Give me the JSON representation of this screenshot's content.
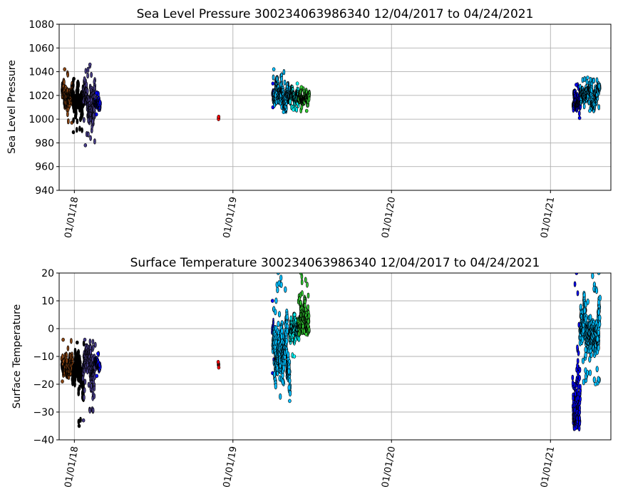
{
  "chart_data": [
    {
      "type": "scatter",
      "title": "Sea Level Pressure 300234063986340  12/04/2017 to 04/24/2021",
      "ylabel": "Sea Level Pressure",
      "xlabel": "",
      "ylim": [
        940,
        1080
      ],
      "yticks": [
        940,
        960,
        980,
        1000,
        1020,
        1040,
        1060,
        1080
      ],
      "xticks": [
        {
          "date": "2018-01-01",
          "label": "01/01/18"
        },
        {
          "date": "2019-01-01",
          "label": "01/01/19"
        },
        {
          "date": "2020-01-01",
          "label": "01/01/20"
        },
        {
          "date": "2021-01-01",
          "label": "01/01/21"
        }
      ],
      "xlim": [
        "2017-11-27",
        "2021-05-20"
      ],
      "grid": true,
      "series": [
        {
          "color": "#8B4513",
          "start": "2017-12-04",
          "end": "2017-12-28",
          "min": 997,
          "max": 1042,
          "center": 1018,
          "width": 5
        },
        {
          "color": "#000000",
          "start": "2017-12-28",
          "end": "2018-01-22",
          "min": 989,
          "max": 1034,
          "center": 1016,
          "width": 5
        },
        {
          "color": "#483D8B",
          "start": "2018-01-22",
          "end": "2018-02-18",
          "min": 978,
          "max": 1046,
          "center": 1020,
          "width": 5
        },
        {
          "color": "#0000FF",
          "start": "2018-02-18",
          "end": "2018-03-01",
          "min": 1004,
          "max": 1022,
          "center": 1012,
          "width": 5
        },
        {
          "color": "#FF0000",
          "start": "2018-11-28",
          "end": "2018-11-30",
          "min": 1000,
          "max": 1002,
          "center": 1001,
          "width": 2
        },
        {
          "color": "#0000FF",
          "start": "2019-04-02",
          "end": "2019-04-04",
          "min": 1010,
          "max": 1030,
          "center": 1020,
          "width": 3
        },
        {
          "color": "#00BFFF",
          "start": "2019-04-04",
          "end": "2019-05-12",
          "min": 1006,
          "max": 1042,
          "center": 1019,
          "width": 5
        },
        {
          "color": "#00FFFF",
          "start": "2019-05-12",
          "end": "2019-06-01",
          "min": 1008,
          "max": 1030,
          "center": 1018,
          "width": 5
        },
        {
          "color": "#32CD32",
          "start": "2019-06-01",
          "end": "2019-06-25",
          "min": 1007,
          "max": 1027,
          "center": 1018,
          "width": 5
        },
        {
          "color": "#0000FF",
          "start": "2021-02-22",
          "end": "2021-03-10",
          "min": 1001,
          "max": 1029,
          "center": 1014,
          "width": 5
        },
        {
          "color": "#00BFFF",
          "start": "2021-03-10",
          "end": "2021-04-24",
          "min": 1007,
          "max": 1035,
          "center": 1022,
          "width": 5
        }
      ]
    },
    {
      "type": "scatter",
      "title": "Surface Temperature 300234063986340  12/04/2017 to 04/24/2021",
      "ylabel": "Surface Temperature",
      "xlabel": "",
      "ylim": [
        -40,
        20
      ],
      "yticks": [
        -40,
        -30,
        -20,
        -10,
        0,
        10,
        20
      ],
      "xticks": [
        {
          "date": "2018-01-01",
          "label": "01/01/18"
        },
        {
          "date": "2019-01-01",
          "label": "01/01/19"
        },
        {
          "date": "2020-01-01",
          "label": "01/01/20"
        },
        {
          "date": "2021-01-01",
          "label": "01/01/21"
        }
      ],
      "xlim": [
        "2017-11-27",
        "2021-05-20"
      ],
      "grid": true,
      "series": [
        {
          "color": "#8B4513",
          "start": "2017-12-04",
          "end": "2017-12-28",
          "min": -19,
          "max": -4,
          "center": -12,
          "width": 5
        },
        {
          "color": "#000000",
          "start": "2017-12-28",
          "end": "2018-01-22",
          "min": -35,
          "max": -5,
          "center": -18,
          "width": 5
        },
        {
          "color": "#483D8B",
          "start": "2018-01-22",
          "end": "2018-02-18",
          "min": -33,
          "max": -4,
          "center": -13,
          "width": 5
        },
        {
          "color": "#0000FF",
          "start": "2018-02-18",
          "end": "2018-03-01",
          "min": -17,
          "max": -9,
          "center": -13,
          "width": 5
        },
        {
          "color": "#FF0000",
          "start": "2018-11-28",
          "end": "2018-11-30",
          "min": -14,
          "max": -12,
          "center": -13,
          "width": 2
        },
        {
          "color": "#0000FF",
          "start": "2019-04-02",
          "end": "2019-04-04",
          "min": -16,
          "max": 10,
          "center": 0,
          "width": 3
        },
        {
          "color": "#00BFFF",
          "start": "2019-04-04",
          "end": "2019-05-12",
          "min": -26,
          "max": 20,
          "center": -8,
          "width": 6
        },
        {
          "color": "#00FFFF",
          "start": "2019-05-12",
          "end": "2019-06-01",
          "min": -10,
          "max": 5,
          "center": -1,
          "width": 5
        },
        {
          "color": "#32CD32",
          "start": "2019-06-01",
          "end": "2019-06-25",
          "min": -2,
          "max": 20,
          "center": 3,
          "width": 5
        },
        {
          "color": "#0000FF",
          "start": "2021-02-22",
          "end": "2021-03-10",
          "min": -36,
          "max": 20,
          "center": -22,
          "width": 5
        },
        {
          "color": "#00BFFF",
          "start": "2021-03-10",
          "end": "2021-04-24",
          "min": -20,
          "max": 20,
          "center": -2,
          "width": 6
        }
      ]
    }
  ]
}
